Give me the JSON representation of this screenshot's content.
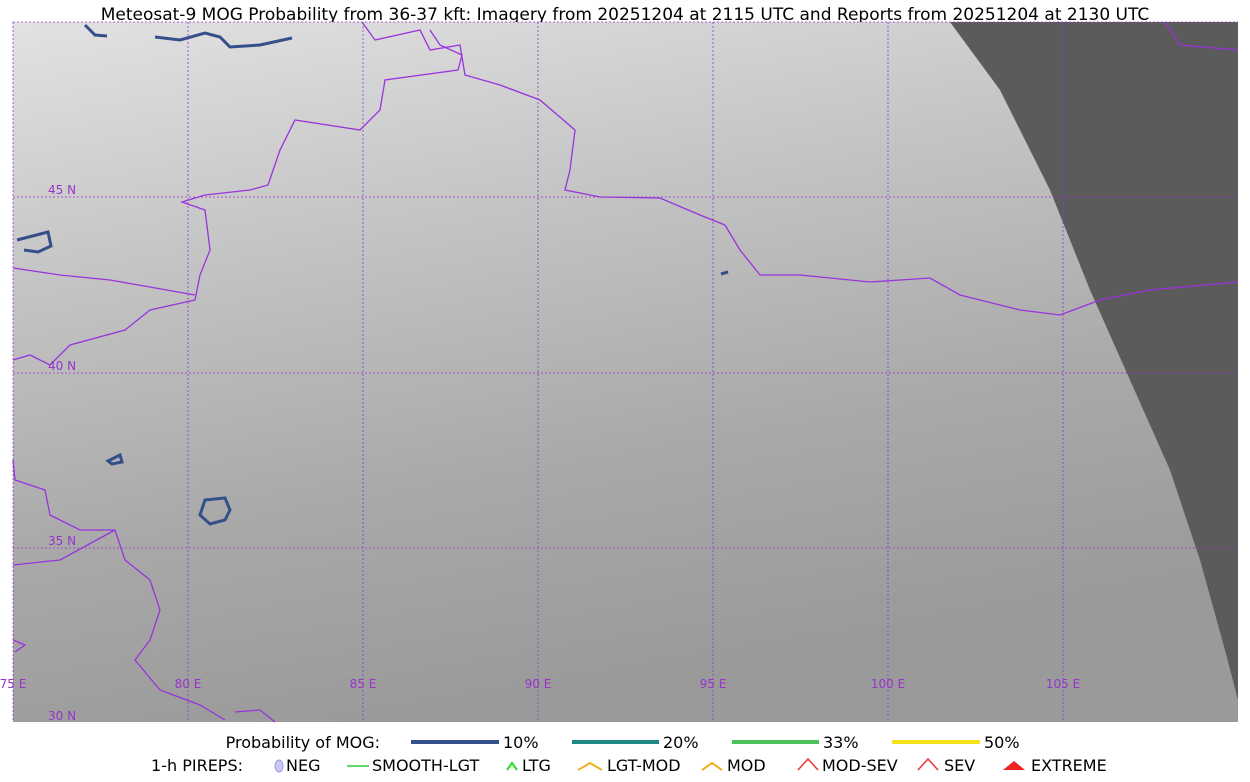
{
  "title": "Meteosat-9 MOG Probability from 36-37 kft: Imagery from 20251204 at 2115 UTC and Reports from 20251204 at 2130 UTC",
  "map": {
    "lat_labels": [
      "45 N",
      "40 N",
      "35 N",
      "30 N"
    ],
    "lon_labels": [
      "75 E",
      "80 E",
      "85 E",
      "90 E",
      "95 E",
      "100 E",
      "105 E"
    ]
  },
  "legend": {
    "mog_label": "Probability of MOG:",
    "mog_items": [
      "10%",
      "20%",
      "33%",
      "50%"
    ],
    "pirep_label": "1-h PIREPS:",
    "pirep_items": [
      "NEG",
      "SMOOTH-LGT",
      "LTG",
      "LGT-MOD",
      "MOD",
      "MOD-SEV",
      "SEV",
      "EXTREME"
    ]
  }
}
